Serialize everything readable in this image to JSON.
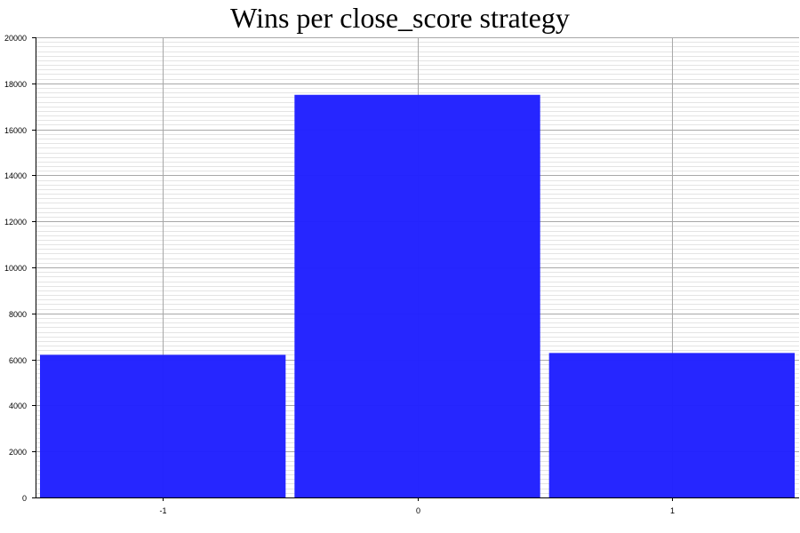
{
  "chart_data": {
    "type": "bar",
    "title": "Wins per close_score strategy",
    "xlabel": "",
    "ylabel": "",
    "categories": [
      "-1",
      "0",
      "1"
    ],
    "values": [
      6200,
      17500,
      6280
    ],
    "ylim": [
      0,
      20000
    ],
    "yticks": [
      0,
      2000,
      4000,
      6000,
      8000,
      10000,
      12000,
      14000,
      16000,
      18000,
      20000
    ],
    "grid": true,
    "legend": "none",
    "bar_color": "#2222ff"
  }
}
